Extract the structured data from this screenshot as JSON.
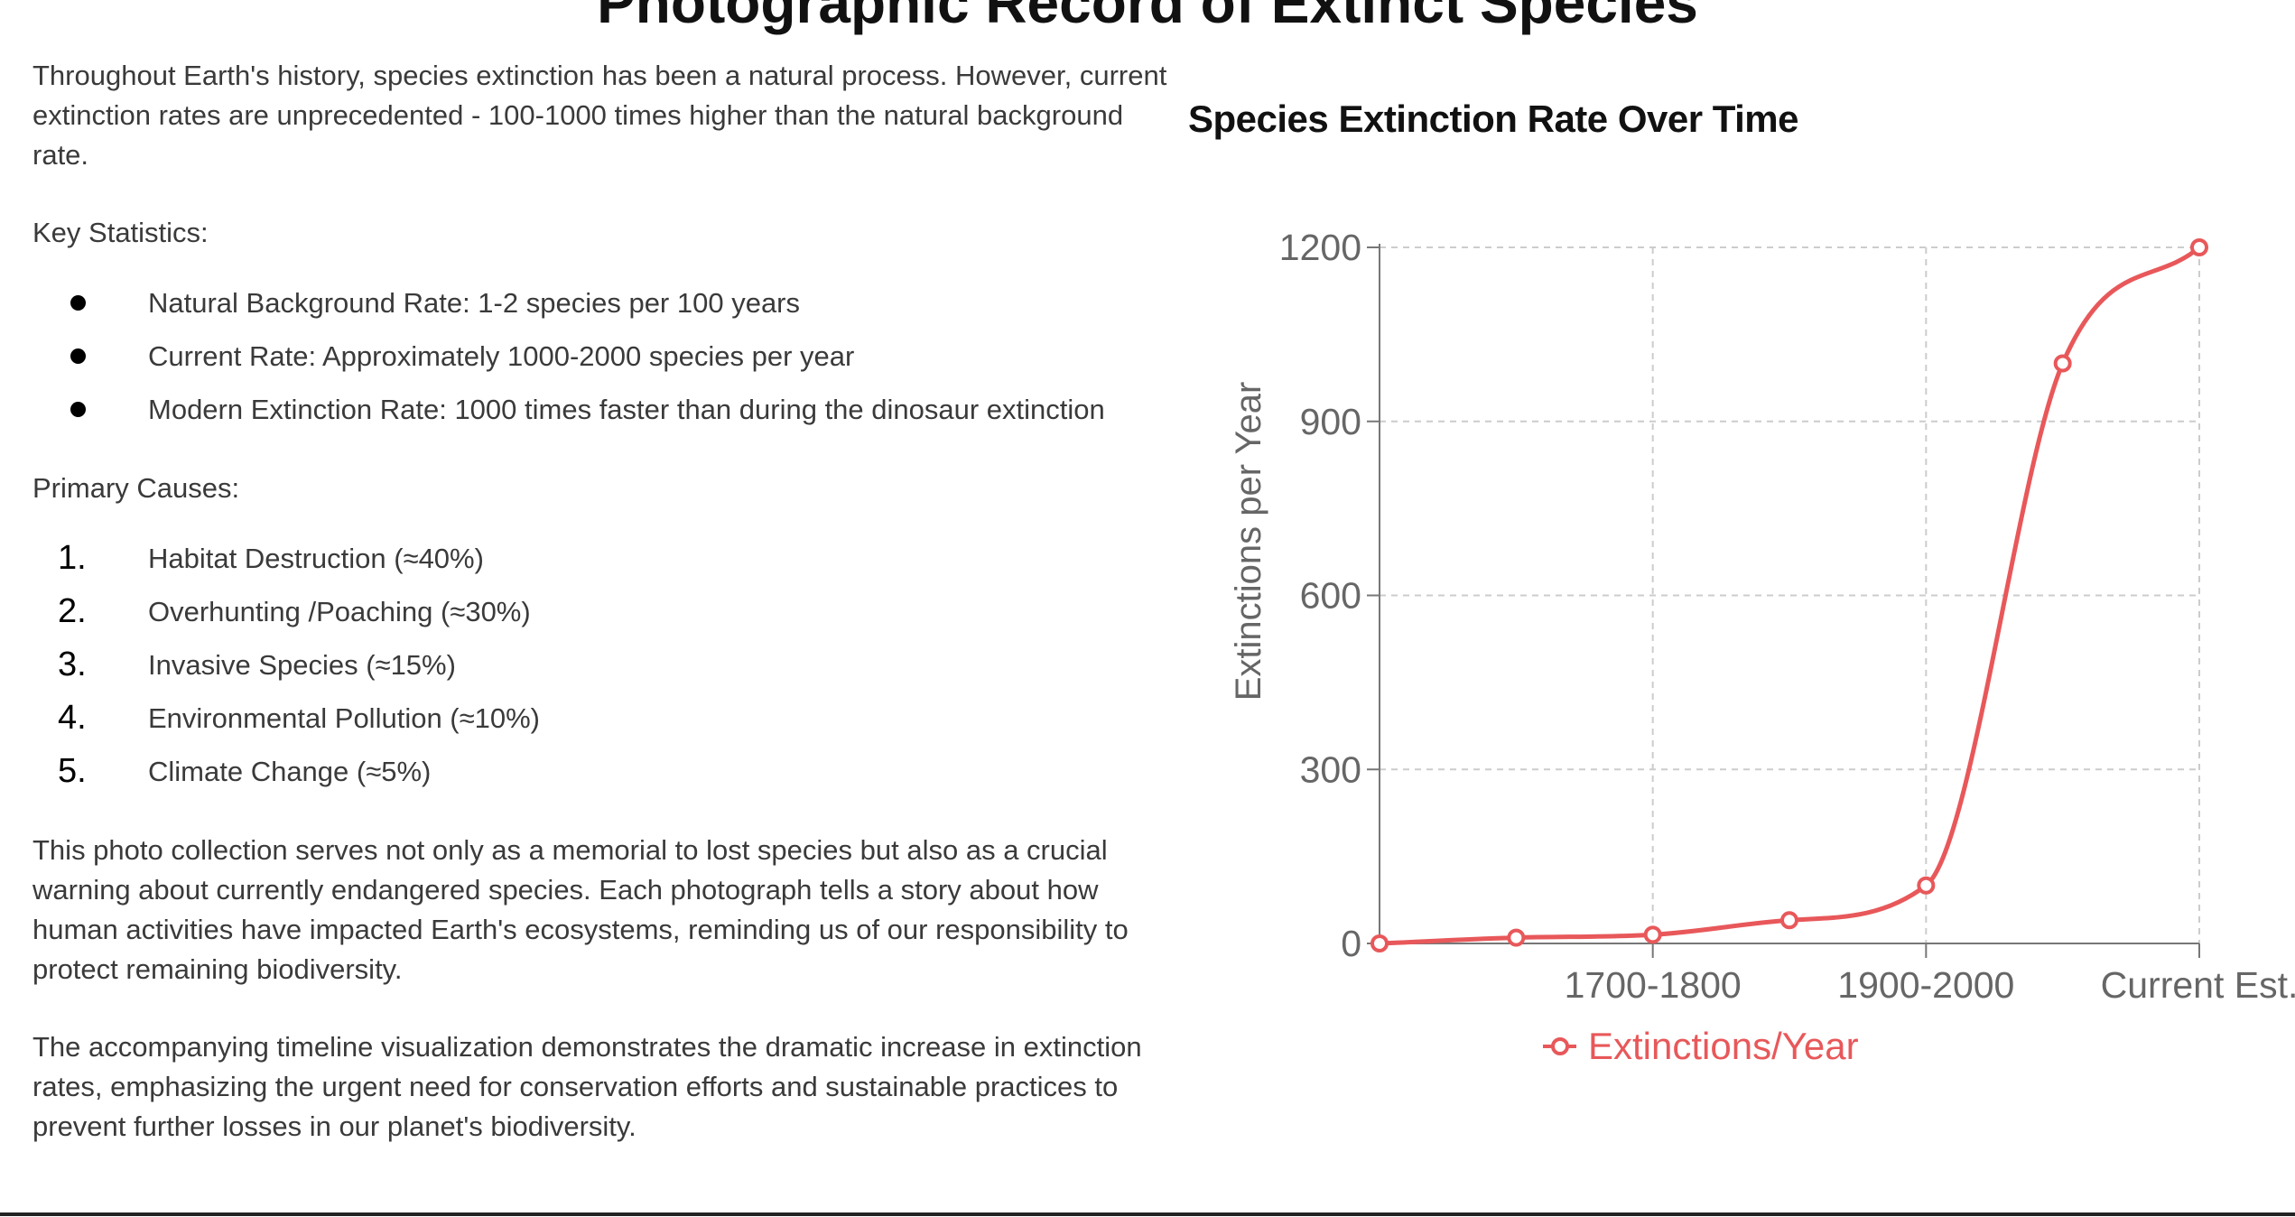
{
  "page": {
    "title": "Photographic Record of Extinct Species"
  },
  "article": {
    "intro": "Throughout Earth's history, species extinction has been a natural process. However, current extinction rates are unprecedented - 100-1000 times higher than the natural background rate.",
    "stats_heading": "Key Statistics:",
    "stats": [
      "Natural Background Rate: 1-2 species per 100 years",
      "Current Rate: Approximately 1000-2000 species per year",
      "Modern Extinction Rate: 1000 times faster than during the dinosaur extinction"
    ],
    "causes_heading": "Primary Causes:",
    "causes": [
      {
        "num": "1.",
        "label": "Habitat Destruction (≈40%)"
      },
      {
        "num": "2.",
        "label": "Overhunting /Poaching (≈30%)"
      },
      {
        "num": "3.",
        "label": "Invasive Species (≈15%)"
      },
      {
        "num": "4.",
        "label": "Environmental Pollution (≈10%)"
      },
      {
        "num": "5.",
        "label": "Climate Change (≈5%)"
      }
    ],
    "memorial_paragraph": "This photo collection serves not only as a memorial to lost species but also as a crucial warning about currently endangered species. Each photograph tells a story about how human activities have impacted Earth's ecosystems, reminding us of our responsibility to protect remaining biodiversity.",
    "timeline_paragraph": "The accompanying timeline visualization demonstrates the dramatic increase in extinction rates, emphasizing the urgent need for conservation efforts and sustainable practices to prevent further losses in our planet's biodiversity."
  },
  "chart_data": {
    "type": "line",
    "title": "Species Extinction Rate Over Time",
    "xlabel": "",
    "ylabel": "Extinctions per Year",
    "x_tick_labels": [
      "1700-1800",
      "1900-2000",
      "Current Est."
    ],
    "y_ticks": [
      0,
      300,
      600,
      900,
      1200
    ],
    "ylim": [
      0,
      1200
    ],
    "grid": true,
    "legend_position": "bottom",
    "series": [
      {
        "name": "Extinctions/Year",
        "color": "#e8585a",
        "values": [
          0,
          10,
          15,
          40,
          100,
          1000,
          1200
        ]
      }
    ]
  }
}
